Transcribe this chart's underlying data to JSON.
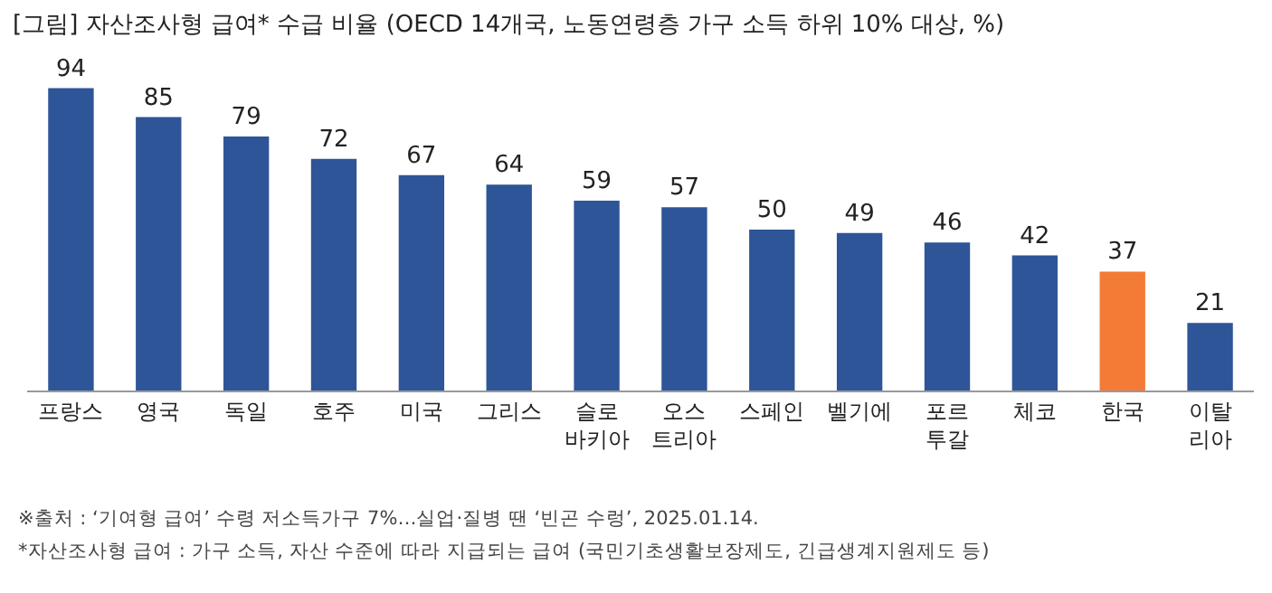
{
  "chart_data": {
    "type": "bar",
    "title": "[그림] 자산조사형 급여* 수급 비율 (OECD 14개국, 노동연령층 가구 소득 하위 10% 대상, %)",
    "categories": [
      "프랑스",
      "영국",
      "독일",
      "호주",
      "미국",
      "그리스",
      "슬로\n바키아",
      "오스\n트리아",
      "스페인",
      "벨기에",
      "포르\n투갈",
      "체코",
      "한국",
      "이탈\n리아"
    ],
    "values": [
      94,
      85,
      79,
      72,
      67,
      64,
      59,
      57,
      50,
      49,
      46,
      42,
      37,
      21
    ],
    "colors": [
      "#2e5597",
      "#2e5597",
      "#2e5597",
      "#2e5597",
      "#2e5597",
      "#2e5597",
      "#2e5597",
      "#2e5597",
      "#2e5597",
      "#2e5597",
      "#2e5597",
      "#2e5597",
      "#f47b35",
      "#2e5597"
    ],
    "tick_labels": "x",
    "data_labels": true,
    "annotations": [
      "※출처 : ‘기여형 급여’ 수령 저소득가구 7%…실업·질병 땐 ‘빈곤 수렁’, 2025.01.14.",
      "*자산조사형 급여 : 가구 소득, 자산 수준에 따라 지급되는 급여 (국민기초생활보장제도, 긴급생계지원제도 등)"
    ]
  }
}
